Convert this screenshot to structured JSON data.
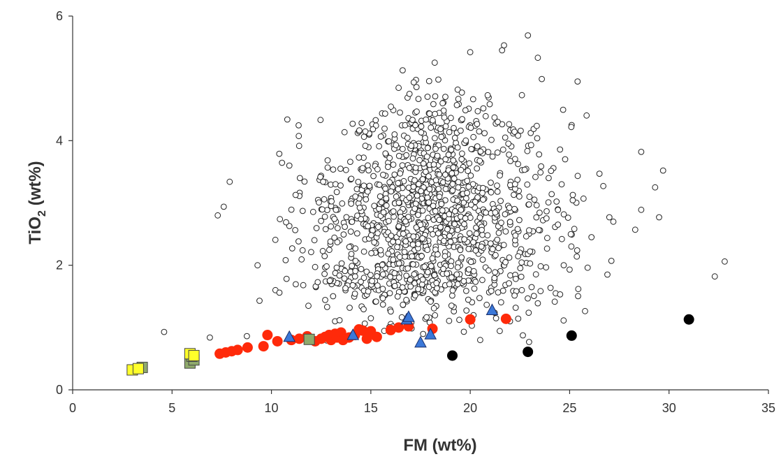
{
  "chart_data": {
    "type": "scatter",
    "xlabel": "FM (wt%)",
    "ylabel_main": "TiO",
    "ylabel_sub": "2",
    "ylabel_tail": " (wt%)",
    "xlim": [
      0,
      35
    ],
    "ylim": [
      0,
      6
    ],
    "xticks": [
      0,
      5,
      10,
      15,
      20,
      25,
      30,
      35
    ],
    "yticks": [
      0,
      2,
      4,
      6
    ],
    "grid": false,
    "legend": "none",
    "colors": {
      "background_open": "#ffffff",
      "background_open_stroke": "#222222",
      "red": "#ff2a0a",
      "black": "#000000",
      "blue": "#3b78d8",
      "yellow": "#ffff2a",
      "green": "#8faa6c"
    },
    "background_cloud": {
      "marker": "open-circle",
      "seed": 7,
      "anchors": [
        [
          4.6,
          0.93
        ],
        [
          6.9,
          0.84
        ],
        [
          7.3,
          2.8
        ],
        [
          7.6,
          2.94
        ],
        [
          7.9,
          3.34
        ],
        [
          9.3,
          2.0
        ],
        [
          9.4,
          1.43
        ],
        [
          10.2,
          1.6
        ],
        [
          10.4,
          1.56
        ],
        [
          10.8,
          4.34
        ],
        [
          10.9,
          3.6
        ],
        [
          10.9,
          2.63
        ],
        [
          11.6,
          1.68
        ],
        [
          12.8,
          1.33
        ],
        [
          13.2,
          1.1
        ],
        [
          15.0,
          1.15
        ],
        [
          16.6,
          5.13
        ],
        [
          20.0,
          5.42
        ],
        [
          21.6,
          5.45
        ],
        [
          21.7,
          5.53
        ],
        [
          22.9,
          5.69
        ],
        [
          23.4,
          5.33
        ],
        [
          22.6,
          4.73
        ],
        [
          23.6,
          4.99
        ],
        [
          25.4,
          4.95
        ],
        [
          25.1,
          4.25
        ],
        [
          24.6,
          3.3
        ],
        [
          25.7,
          3.07
        ],
        [
          26.5,
          3.47
        ],
        [
          27.0,
          2.77
        ],
        [
          27.2,
          2.7
        ],
        [
          27.1,
          2.07
        ],
        [
          28.3,
          2.57
        ],
        [
          28.6,
          3.82
        ],
        [
          28.6,
          2.89
        ],
        [
          29.3,
          3.25
        ],
        [
          29.5,
          2.77
        ],
        [
          29.7,
          3.52
        ],
        [
          32.3,
          1.82
        ],
        [
          32.8,
          2.06
        ],
        [
          20.5,
          0.8
        ],
        [
          22.0,
          1.1
        ],
        [
          21.3,
          1.15
        ],
        [
          23.4,
          1.39
        ],
        [
          24.3,
          1.55
        ],
        [
          25.0,
          1.93
        ],
        [
          26.9,
          1.85
        ],
        [
          26.1,
          2.45
        ]
      ],
      "clusters": [
        {
          "cx": 18.1,
          "cy": 2.75,
          "sx": 2.35,
          "sy": 0.82,
          "n": 900
        },
        {
          "cx": 17.2,
          "cy": 1.75,
          "sx": 2.5,
          "sy": 0.2,
          "n": 130
        },
        {
          "cx": 18.3,
          "cy": 4.1,
          "sx": 2.2,
          "sy": 0.42,
          "n": 110
        },
        {
          "cx": 13.0,
          "cy": 2.7,
          "sx": 1.5,
          "sy": 0.75,
          "n": 95
        },
        {
          "cx": 23.2,
          "cy": 2.7,
          "sx": 1.3,
          "sy": 0.7,
          "n": 90
        }
      ]
    },
    "series": [
      {
        "marker": "filled-circle",
        "color": "red",
        "points": [
          [
            7.4,
            0.58
          ],
          [
            7.7,
            0.6
          ],
          [
            8.0,
            0.62
          ],
          [
            8.3,
            0.64
          ],
          [
            8.8,
            0.68
          ],
          [
            9.6,
            0.7
          ],
          [
            9.8,
            0.88
          ],
          [
            10.3,
            0.78
          ],
          [
            11.0,
            0.8
          ],
          [
            11.4,
            0.82
          ],
          [
            11.8,
            0.86
          ],
          [
            12.2,
            0.78
          ],
          [
            12.5,
            0.82
          ],
          [
            12.7,
            0.85
          ],
          [
            12.9,
            0.88
          ],
          [
            13.0,
            0.8
          ],
          [
            13.2,
            0.9
          ],
          [
            13.3,
            0.84
          ],
          [
            13.5,
            0.92
          ],
          [
            13.6,
            0.8
          ],
          [
            13.9,
            0.84
          ],
          [
            14.2,
            0.88
          ],
          [
            14.4,
            0.97
          ],
          [
            14.6,
            0.95
          ],
          [
            14.8,
            0.82
          ],
          [
            15.0,
            0.94
          ],
          [
            15.3,
            0.85
          ],
          [
            16.0,
            0.96
          ],
          [
            16.4,
            1.0
          ],
          [
            16.9,
            1.02
          ],
          [
            18.1,
            0.98
          ],
          [
            20.0,
            1.13
          ],
          [
            21.8,
            1.14
          ]
        ]
      },
      {
        "marker": "filled-circle",
        "color": "black",
        "points": [
          [
            19.1,
            0.55
          ],
          [
            22.9,
            0.61
          ],
          [
            25.1,
            0.87
          ],
          [
            31.0,
            1.13
          ]
        ]
      },
      {
        "marker": "triangle",
        "color": "blue",
        "points": [
          [
            10.9,
            0.84
          ],
          [
            14.1,
            0.87
          ],
          [
            16.8,
            1.12
          ],
          [
            16.9,
            1.16
          ],
          [
            17.5,
            0.75
          ],
          [
            18.0,
            0.88
          ],
          [
            21.1,
            1.27
          ]
        ]
      },
      {
        "marker": "square",
        "color": "green",
        "points": [
          [
            3.5,
            0.36
          ],
          [
            5.9,
            0.43
          ],
          [
            6.1,
            0.48
          ],
          [
            6.0,
            0.54
          ],
          [
            11.9,
            0.81
          ]
        ]
      },
      {
        "marker": "square",
        "color": "yellow",
        "points": [
          [
            3.0,
            0.32
          ],
          [
            3.3,
            0.34
          ],
          [
            5.9,
            0.58
          ],
          [
            6.1,
            0.55
          ]
        ]
      }
    ]
  }
}
